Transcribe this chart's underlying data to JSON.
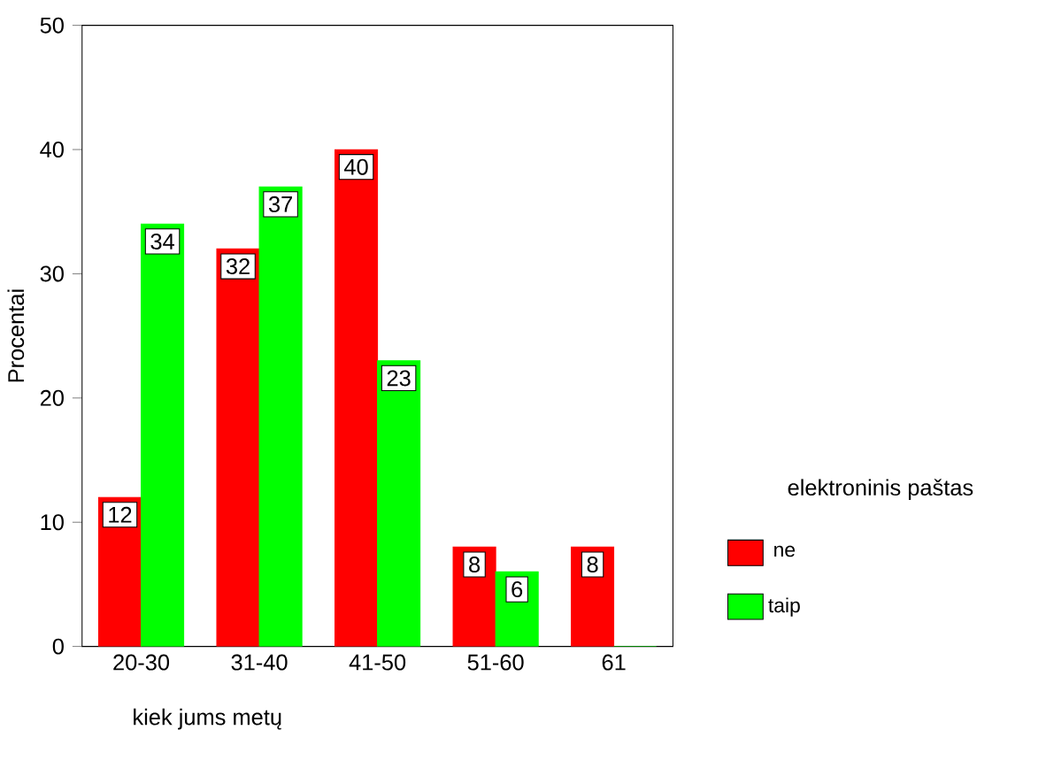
{
  "chart_data": {
    "type": "bar",
    "xlabel": "kiek jums metų",
    "ylabel": "Procentai",
    "legend_title": "elektroninis paštas",
    "categories": [
      "20-30",
      "31-40",
      "41-50",
      "51-60",
      "61"
    ],
    "series": [
      {
        "name": "ne",
        "color": "#ff0000",
        "values": [
          12,
          32,
          40,
          8,
          8
        ],
        "value_labels": [
          "12",
          "32",
          "40",
          "8",
          "8"
        ]
      },
      {
        "name": "taip",
        "color": "#00ff00",
        "values": [
          34,
          37,
          23,
          6,
          0
        ],
        "value_labels": [
          "34",
          "37",
          "23",
          "6",
          null
        ]
      }
    ],
    "ylim": [
      0,
      50
    ],
    "yticks": [
      0,
      10,
      20,
      30,
      40,
      50
    ],
    "grid": false,
    "legend": "right"
  }
}
